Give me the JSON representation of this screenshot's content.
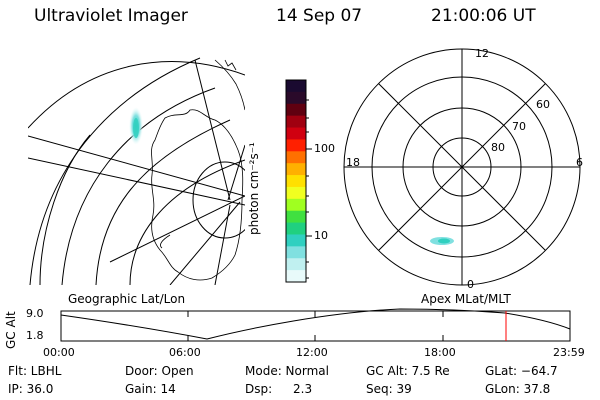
{
  "header": {
    "instrument": "Ultraviolet Imager",
    "date": "14 Sep 07",
    "time": "21:00:06 UT"
  },
  "colorbar": {
    "unit_label": "photon cm⁻²s⁻¹",
    "ticks": [
      "100",
      "10"
    ],
    "colors": [
      "#1a0a30",
      "#2a0a2a",
      "#600010",
      "#a00010",
      "#d00010",
      "#ff2000",
      "#ff7000",
      "#ffb000",
      "#ffe000",
      "#f0ff20",
      "#a0ff20",
      "#40e040",
      "#20d080",
      "#30d0c0",
      "#80e0e0",
      "#c0f0f0",
      "#e8fafa"
    ]
  },
  "geo_map": {
    "label": "Geographic Lat/Lon"
  },
  "polar_map": {
    "label": "Apex MLat/MLT",
    "mlt_labels": {
      "top": "12",
      "left": "18",
      "right": "6",
      "bottom": "0"
    },
    "lat_labels": [
      "60",
      "70",
      "80"
    ]
  },
  "altitude_plot": {
    "ylabel": "GC Alt",
    "ymax": "9.0",
    "ymin": "1.8",
    "xticks": [
      "00:00",
      "06:00",
      "12:00",
      "18:00",
      "23:59"
    ],
    "current_marker_color": "#ff0000"
  },
  "info": {
    "flt": "Flt: LBHL",
    "ip": "IP: 36.0",
    "door": "Door: Open",
    "gain": "Gain: 14",
    "mode": "Mode: Normal",
    "dsp_label": "Dsp:",
    "dsp_value": "2.3",
    "gc_alt": "GC Alt: 7.5 Re",
    "seq": "Seq: 39",
    "glat": "GLat: −64.7",
    "glon": "GLon:  37.8"
  }
}
